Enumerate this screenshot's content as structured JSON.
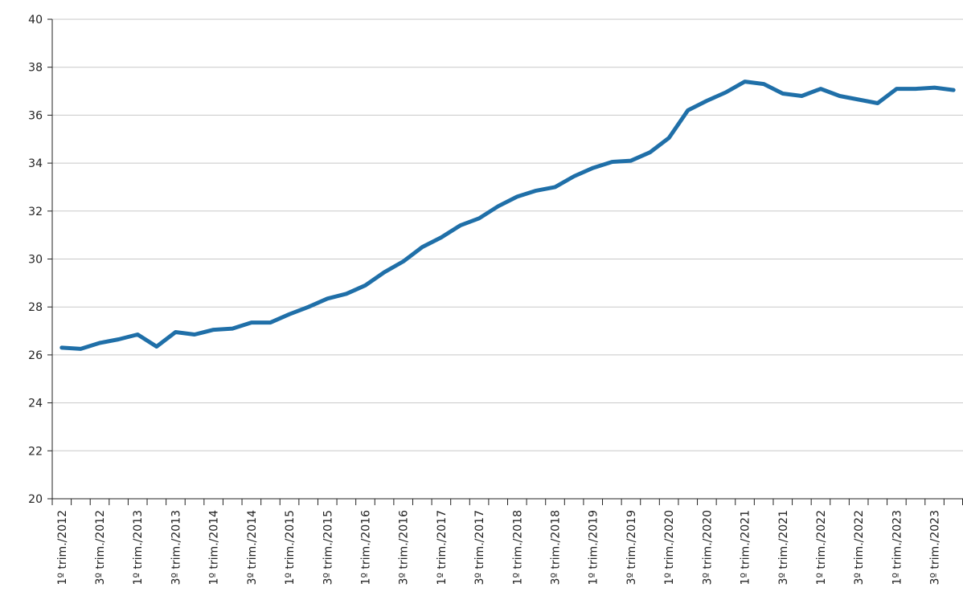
{
  "chart_data": {
    "type": "line",
    "categories": [
      "1º trim./2012",
      null,
      "3º trim./2012",
      null,
      "1º trim./2013",
      null,
      "3º trim./2013",
      null,
      "1º trim./2014",
      null,
      "3º trim./2014",
      null,
      "1º trim./2015",
      null,
      "3º trim./2015",
      null,
      "1º trim./2016",
      null,
      "3º trim./2016",
      null,
      "1º trim./2017",
      null,
      "3º trim./2017",
      null,
      "1º trim./2018",
      null,
      "3º trim./2018",
      null,
      "1º trim./2019",
      null,
      "3º trim./2019",
      null,
      "1º trim./2020",
      null,
      "3º trim./2020",
      null,
      "1º trim./2021",
      null,
      "3º trim./2021",
      null,
      "1º trim./2022",
      null,
      "3º trim./2022",
      null,
      "1º trim./2023",
      null,
      "3º trim./2023",
      null
    ],
    "values": [
      26.3,
      26.25,
      26.5,
      26.65,
      26.85,
      26.35,
      26.95,
      26.85,
      27.05,
      27.1,
      27.35,
      27.35,
      27.7,
      28.0,
      28.35,
      28.55,
      28.9,
      29.45,
      29.9,
      30.5,
      30.9,
      31.4,
      31.7,
      32.2,
      32.6,
      32.85,
      33.0,
      33.45,
      33.8,
      34.05,
      34.1,
      34.45,
      35.05,
      36.2,
      36.6,
      36.95,
      37.4,
      37.3,
      36.9,
      36.8,
      37.1,
      36.8,
      36.65,
      36.5,
      37.1,
      37.1,
      37.15,
      37.05
    ],
    "color": "#1f6fa8",
    "ylim": [
      20,
      40
    ],
    "yticks": [
      20,
      22,
      24,
      26,
      28,
      30,
      32,
      34,
      36,
      38,
      40
    ],
    "grid": true
  }
}
